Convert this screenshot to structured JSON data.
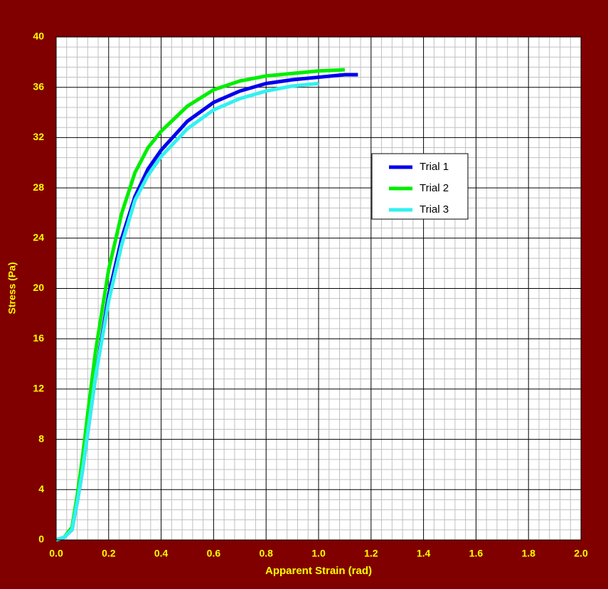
{
  "chart_data": {
    "type": "line",
    "x_label": "Apparent Strain (rad)",
    "y_label": "Stress (Pa)",
    "x": [
      0,
      0.03,
      0.06,
      0.08,
      0.1,
      0.12,
      0.15,
      0.2,
      0.25,
      0.3,
      0.35,
      0.4,
      0.5,
      0.6,
      0.7,
      0.8,
      0.9,
      1.0,
      1.1,
      1.15
    ],
    "series": [
      {
        "name": "Trial 1",
        "color": "#0000ee",
        "values": [
          0,
          0.2,
          0.8,
          3,
          5.5,
          8.5,
          13,
          19.5,
          24,
          27.3,
          29.5,
          31,
          33.3,
          34.8,
          35.7,
          36.3,
          36.6,
          36.8,
          37,
          37
        ]
      },
      {
        "name": "Trial 2",
        "color": "#00ee00",
        "values": [
          0,
          0.2,
          1,
          3.5,
          6.5,
          10,
          15,
          21.5,
          26,
          29.2,
          31.2,
          32.5,
          34.5,
          35.8,
          36.5,
          36.9,
          37.1,
          37.3,
          37.4,
          null
        ]
      },
      {
        "name": "Trial 3",
        "color": "#33f0f0",
        "values": [
          0,
          0.2,
          0.8,
          3,
          5.5,
          8.5,
          13,
          19,
          23.5,
          27,
          29,
          30.5,
          32.7,
          34.2,
          35.1,
          35.7,
          36.1,
          36.3,
          null,
          null
        ]
      }
    ],
    "xlim": [
      0,
      2
    ],
    "ylim": [
      0,
      40
    ],
    "xticks": [
      {
        "value": 0,
        "label": "0.0"
      },
      0.2,
      0.4,
      0.6,
      0.8,
      {
        "value": 1,
        "label": "1.0"
      },
      1.2,
      1.4,
      1.6,
      1.8,
      {
        "value": 2,
        "label": "2.0"
      }
    ],
    "yticks": [
      0,
      4,
      8,
      12,
      16,
      20,
      24,
      28,
      32,
      36,
      40
    ],
    "grid": true,
    "legend": "right"
  }
}
